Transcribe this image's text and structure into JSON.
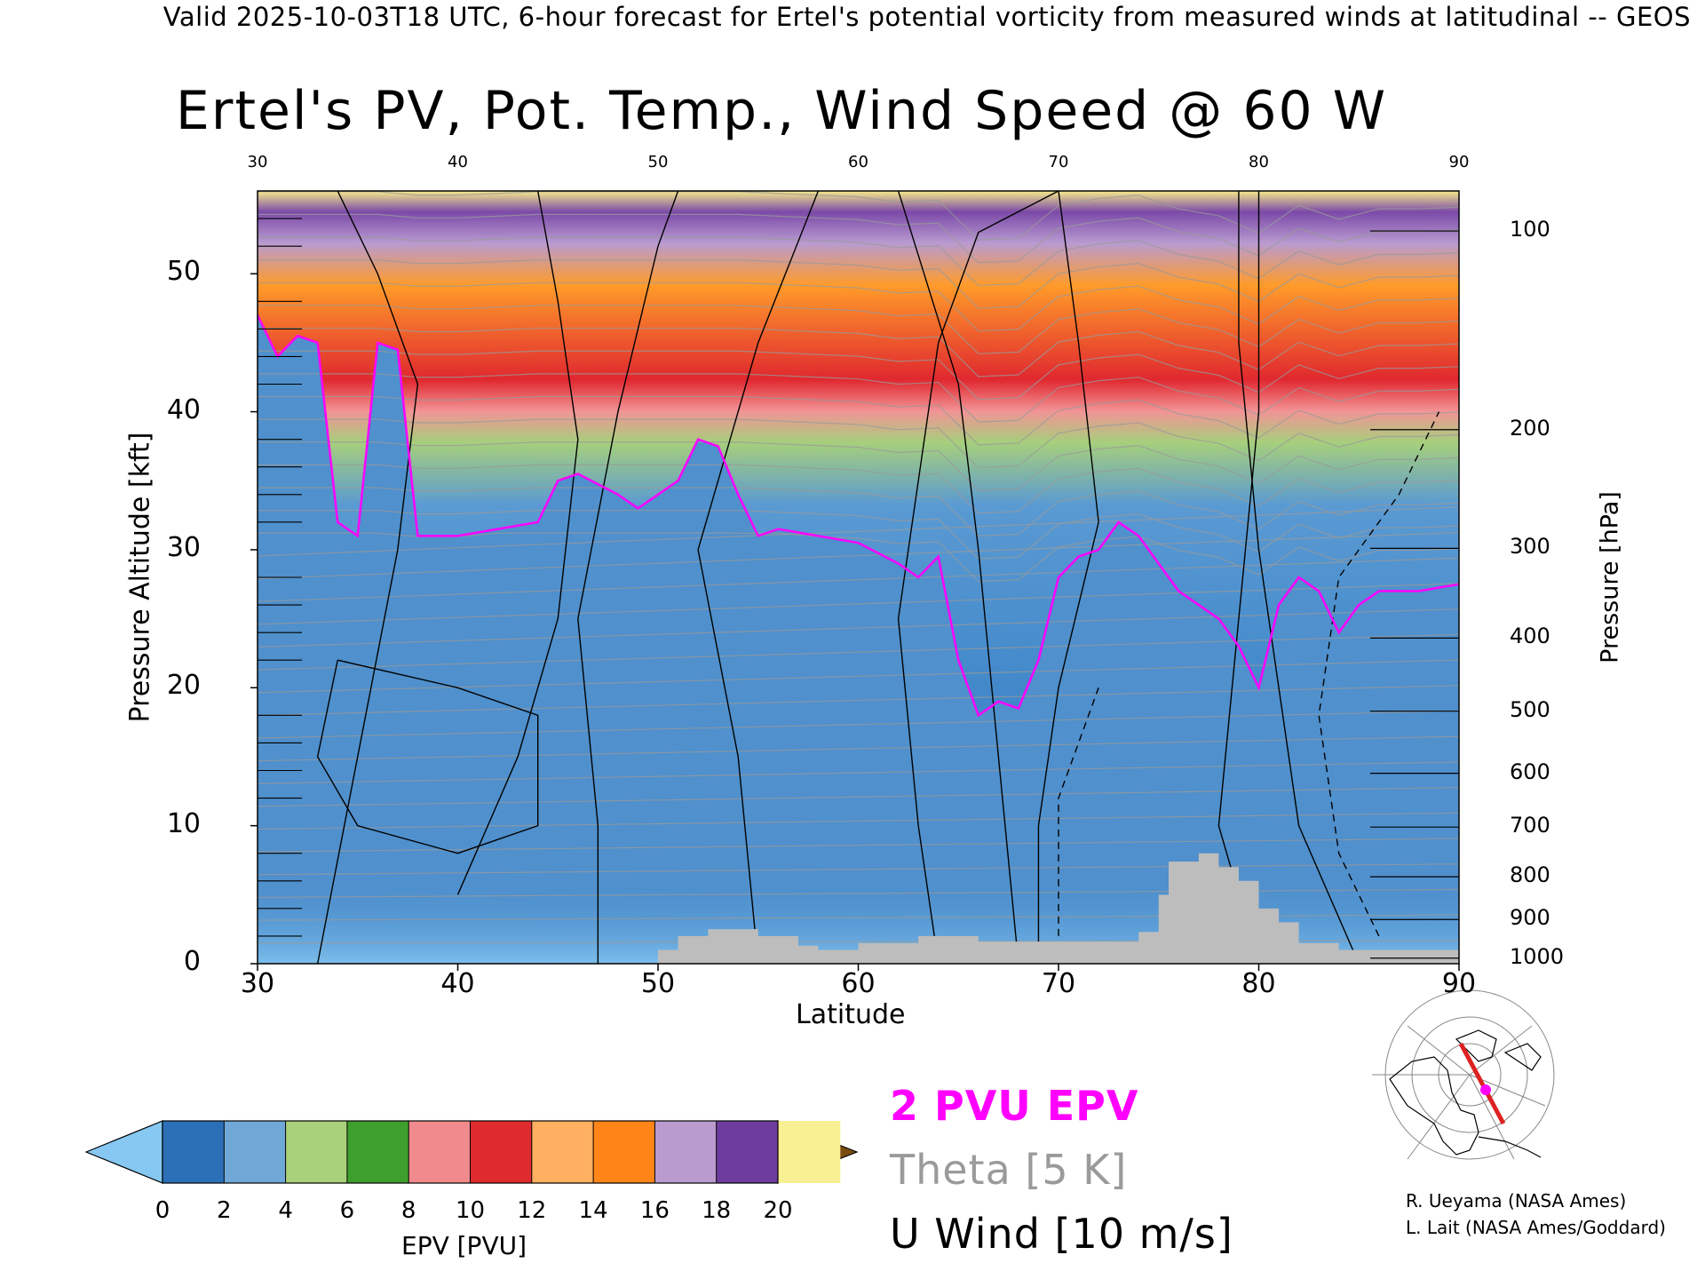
{
  "header": {
    "text": "Valid 2025-10-03T18 UTC, 6-hour forecast for Ertel's potential vorticity from measured winds at latitudinal -- GEOS"
  },
  "chart_data": {
    "type": "heatmap",
    "title": "Ertel's PV, Pot. Temp., Wind Speed @ 60 W",
    "xlabel": "Latitude",
    "ylabel": "Pressure Altitude [kft]",
    "y2label": "Pressure [hPa]",
    "xlim": [
      30,
      90
    ],
    "ylim": [
      0,
      56
    ],
    "x_ticks": [
      "30",
      "40",
      "50",
      "60",
      "70",
      "80",
      "90"
    ],
    "x_ticks_top": [
      "30",
      "40",
      "50",
      "60",
      "70",
      "80",
      "90"
    ],
    "y_ticks": [
      "0",
      "10",
      "20",
      "30",
      "40",
      "50"
    ],
    "pressure_ticks": [
      {
        "label": "1000",
        "kft": 0.4
      },
      {
        "label": "900",
        "kft": 3.2
      },
      {
        "label": "800",
        "kft": 6.3
      },
      {
        "label": "700",
        "kft": 9.9
      },
      {
        "label": "600",
        "kft": 13.8
      },
      {
        "label": "500",
        "kft": 18.3
      },
      {
        "label": "400",
        "kft": 23.6
      },
      {
        "label": "300",
        "kft": 30.1
      },
      {
        "label": "200",
        "kft": 38.7
      },
      {
        "label": "100",
        "kft": 53.1
      }
    ],
    "pv2_tropopause": [
      [
        30,
        47
      ],
      [
        31,
        44
      ],
      [
        32,
        45.5
      ],
      [
        33,
        45
      ],
      [
        34,
        32
      ],
      [
        35,
        31
      ],
      [
        36,
        45
      ],
      [
        37,
        44.5
      ],
      [
        38,
        31
      ],
      [
        40,
        31
      ],
      [
        42,
        31.5
      ],
      [
        44,
        32
      ],
      [
        45,
        35
      ],
      [
        46,
        35.5
      ],
      [
        48,
        34
      ],
      [
        49,
        33
      ],
      [
        50,
        34
      ],
      [
        51,
        35
      ],
      [
        52,
        38
      ],
      [
        53,
        37.5
      ],
      [
        54,
        34
      ],
      [
        55,
        31
      ],
      [
        56,
        31.5
      ],
      [
        58,
        31
      ],
      [
        60,
        30.5
      ],
      [
        62,
        29
      ],
      [
        63,
        28
      ],
      [
        64,
        29.5
      ],
      [
        65,
        22
      ],
      [
        66,
        18
      ],
      [
        67,
        19
      ],
      [
        68,
        18.5
      ],
      [
        69,
        22
      ],
      [
        70,
        28
      ],
      [
        71,
        29.5
      ],
      [
        72,
        30
      ],
      [
        73,
        32
      ],
      [
        74,
        31
      ],
      [
        75,
        29
      ],
      [
        76,
        27
      ],
      [
        77,
        26
      ],
      [
        78,
        25
      ],
      [
        79,
        23
      ],
      [
        80,
        20
      ],
      [
        81,
        26
      ],
      [
        82,
        28
      ],
      [
        83,
        27
      ],
      [
        84,
        24
      ],
      [
        85,
        26
      ],
      [
        86,
        27
      ],
      [
        88,
        27
      ],
      [
        90,
        27.5
      ]
    ],
    "terrain": [
      [
        50,
        0
      ],
      [
        50,
        1
      ],
      [
        51,
        1
      ],
      [
        51,
        2
      ],
      [
        52.5,
        2
      ],
      [
        52.5,
        2.5
      ],
      [
        55,
        2.5
      ],
      [
        55,
        2
      ],
      [
        57,
        2
      ],
      [
        57,
        1.3
      ],
      [
        58,
        1.3
      ],
      [
        58,
        1
      ],
      [
        60,
        1
      ],
      [
        60,
        1.5
      ],
      [
        63,
        1.5
      ],
      [
        63,
        2
      ],
      [
        66,
        2
      ],
      [
        66,
        1.6
      ],
      [
        74,
        1.6
      ],
      [
        74,
        2.3
      ],
      [
        75,
        2.3
      ],
      [
        75,
        5
      ],
      [
        75.5,
        5
      ],
      [
        75.5,
        7.4
      ],
      [
        77,
        7.4
      ],
      [
        77,
        8
      ],
      [
        78,
        8
      ],
      [
        78,
        7
      ],
      [
        79,
        7
      ],
      [
        79,
        6
      ],
      [
        80,
        6
      ],
      [
        80,
        4
      ],
      [
        81,
        4
      ],
      [
        81,
        3
      ],
      [
        82,
        3
      ],
      [
        82,
        1.5
      ],
      [
        84,
        1.5
      ],
      [
        84,
        1
      ],
      [
        90,
        1
      ],
      [
        90,
        0
      ]
    ],
    "u_wind_contours_m_s": [
      "0",
      "10",
      "30",
      "-10"
    ],
    "theta_contour_interval": "5 K"
  },
  "colorbar": {
    "label": "EPV [PVU]",
    "ticks": [
      "0",
      "2",
      "4",
      "6",
      "8",
      "10",
      "12",
      "14",
      "16",
      "18",
      "20"
    ],
    "colors": [
      "#2b6fb7",
      "#6fa8d6",
      "#a9d07a",
      "#3f9f2d",
      "#f08a8c",
      "#df2a2e",
      "#ffb060",
      "#ff8518",
      "#b99bd0",
      "#6e3c9d",
      "#f8f093"
    ],
    "under_color": "#86c8f2",
    "over_color": "#7a4e11"
  },
  "legend": {
    "pv": "2 PVU EPV",
    "theta": "Theta [5 K]",
    "wind": "U Wind [10 m/s]",
    "pv_color": "#ff00ff",
    "theta_color": "#9a9a9a"
  },
  "credits": {
    "line1": "R. Ueyama (NASA Ames)",
    "line2": "L. Lait (NASA Ames/Goddard)"
  }
}
